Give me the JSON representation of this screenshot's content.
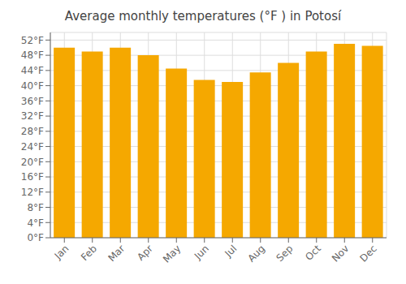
{
  "chart_data": {
    "type": "bar",
    "title": "Average monthly temperatures (°F ) in Potosí",
    "categories": [
      "Jan",
      "Feb",
      "Mar",
      "Apr",
      "May",
      "Jun",
      "Jul",
      "Aug",
      "Sep",
      "Oct",
      "Nov",
      "Dec"
    ],
    "values": [
      50.0,
      49.0,
      50.0,
      48.0,
      44.5,
      41.5,
      41.0,
      43.5,
      46.0,
      49.0,
      51.0,
      50.5
    ],
    "color": "#F5A800",
    "ylim": [
      0,
      54
    ],
    "yticks": [
      {
        "value": 0,
        "label": "0°F"
      },
      {
        "value": 4,
        "label": "4°F"
      },
      {
        "value": 8,
        "label": "8°F"
      },
      {
        "value": 12,
        "label": "12°F"
      },
      {
        "value": 16,
        "label": "16°F"
      },
      {
        "value": 20,
        "label": "20°F"
      },
      {
        "value": 24,
        "label": "24°F"
      },
      {
        "value": 28,
        "label": "28°F"
      },
      {
        "value": 32,
        "label": "32°F"
      },
      {
        "value": 36,
        "label": "36°F"
      },
      {
        "value": 40,
        "label": "40°F"
      },
      {
        "value": 44,
        "label": "44°F"
      },
      {
        "value": 48,
        "label": "48°F"
      },
      {
        "value": 52,
        "label": "52°F"
      }
    ],
    "grid": true
  }
}
